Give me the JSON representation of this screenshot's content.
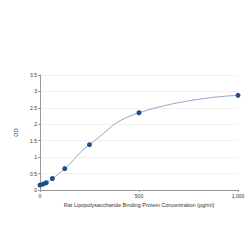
{
  "chart_data": {
    "type": "line",
    "x_label": "Rat Lipopolysaccharide Binding Protein Concentration (pg/ml)",
    "y_label": "OD",
    "x": [
      0,
      15.6,
      31.25,
      62.5,
      125,
      250,
      500,
      1000
    ],
    "values": [
      0.15,
      0.18,
      0.22,
      0.35,
      0.65,
      1.38,
      2.35,
      2.88
    ],
    "color": "#1f4e8c",
    "marker": "circle",
    "xlim": [
      0,
      1000
    ],
    "xticks": [
      0,
      500,
      1000
    ],
    "ylim": [
      0,
      3.5
    ],
    "yticks": [
      0,
      0.5,
      1,
      1.5,
      2,
      2.5,
      3,
      3.5
    ],
    "grid": true
  }
}
